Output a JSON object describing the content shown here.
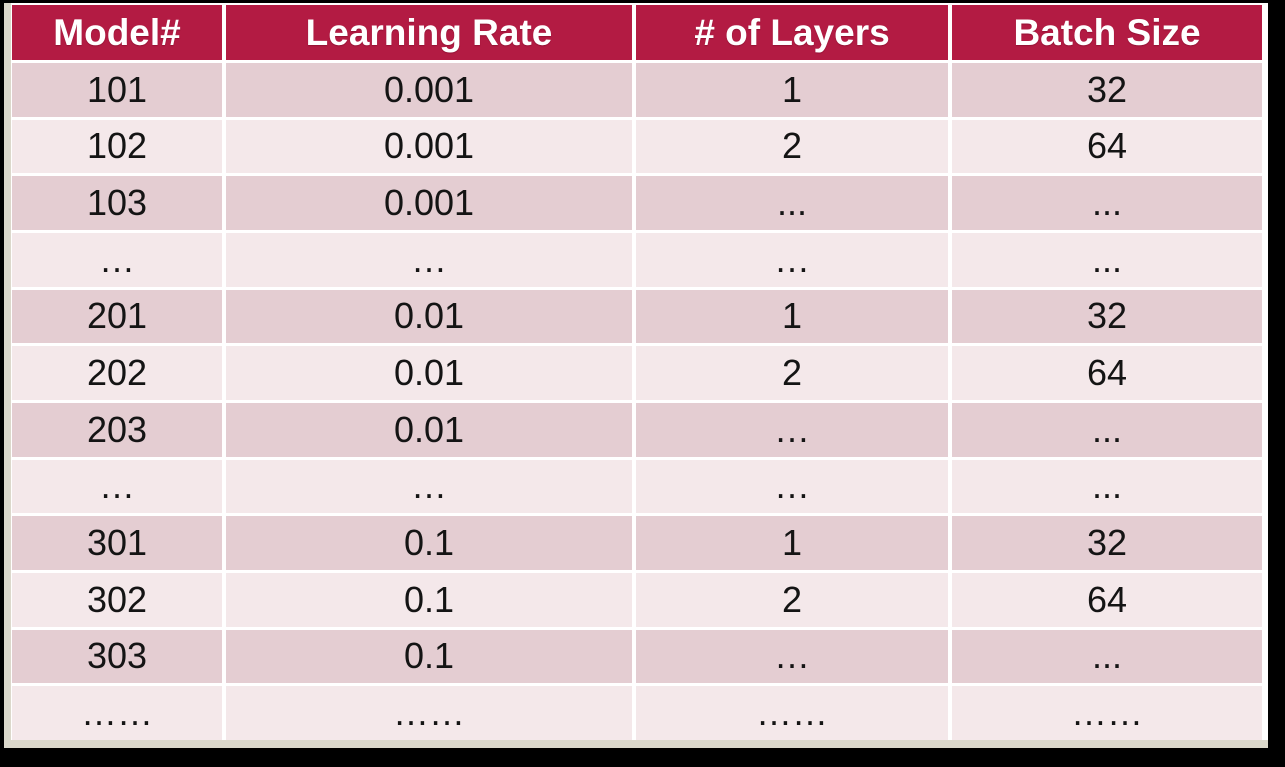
{
  "table": {
    "columns": [
      {
        "label": "Model#"
      },
      {
        "label": "Learning Rate"
      },
      {
        "label": "# of Layers"
      },
      {
        "label": "Batch Size"
      }
    ],
    "rows": [
      [
        "101",
        "0.001",
        "1",
        "32"
      ],
      [
        "102",
        "0.001",
        "2",
        "64"
      ],
      [
        "103",
        "0.001",
        "...",
        "..."
      ],
      [
        "…",
        "…",
        "…",
        "..."
      ],
      [
        "201",
        "0.01",
        "1",
        "32"
      ],
      [
        "202",
        "0.01",
        "2",
        "64"
      ],
      [
        "203",
        "0.01",
        "…",
        "..."
      ],
      [
        "…",
        "…",
        "…",
        "..."
      ],
      [
        "301",
        "0.1",
        "1",
        "32"
      ],
      [
        "302",
        "0.1",
        "2",
        "64"
      ],
      [
        "303",
        "0.1",
        "…",
        "..."
      ],
      [
        "……",
        "……",
        "……",
        "……"
      ]
    ]
  },
  "colors": {
    "page_background": "#000000",
    "slide_edge": "#dbd8cb",
    "header_background": "#b31b43",
    "header_text": "#ffffff",
    "row_dark": "#e4cdd2",
    "row_light": "#f4e8ea",
    "separator": "#ffffff",
    "cell_text": "#141414"
  }
}
